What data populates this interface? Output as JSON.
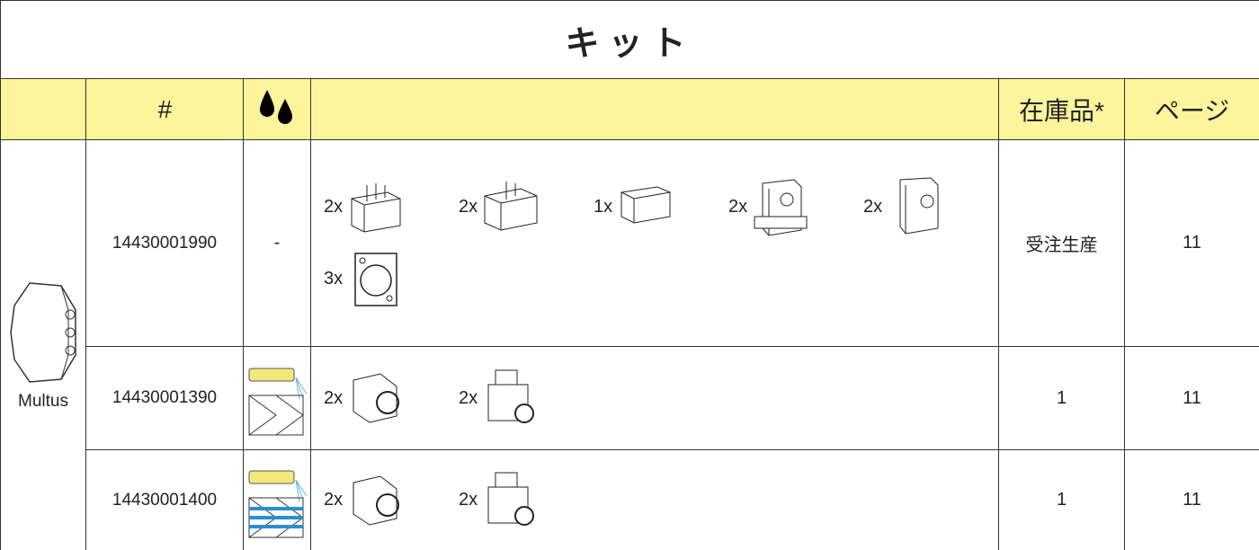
{
  "table": {
    "title": "キット",
    "header": {
      "number": "#",
      "stock": "在庫品*",
      "page": "ページ"
    },
    "machine": "Multus",
    "rows": [
      {
        "number": "14430001990",
        "coolant": "-",
        "items": [
          "2x",
          "2x",
          "1x",
          "2x",
          "2x",
          "3x"
        ],
        "stock": "受注生産",
        "page": "11"
      },
      {
        "number": "14430001390",
        "items": [
          "2x",
          "2x"
        ],
        "stock": "1",
        "page": "11"
      },
      {
        "number": "14430001400",
        "items": [
          "2x",
          "2x"
        ],
        "stock": "1",
        "page": "11"
      }
    ]
  }
}
